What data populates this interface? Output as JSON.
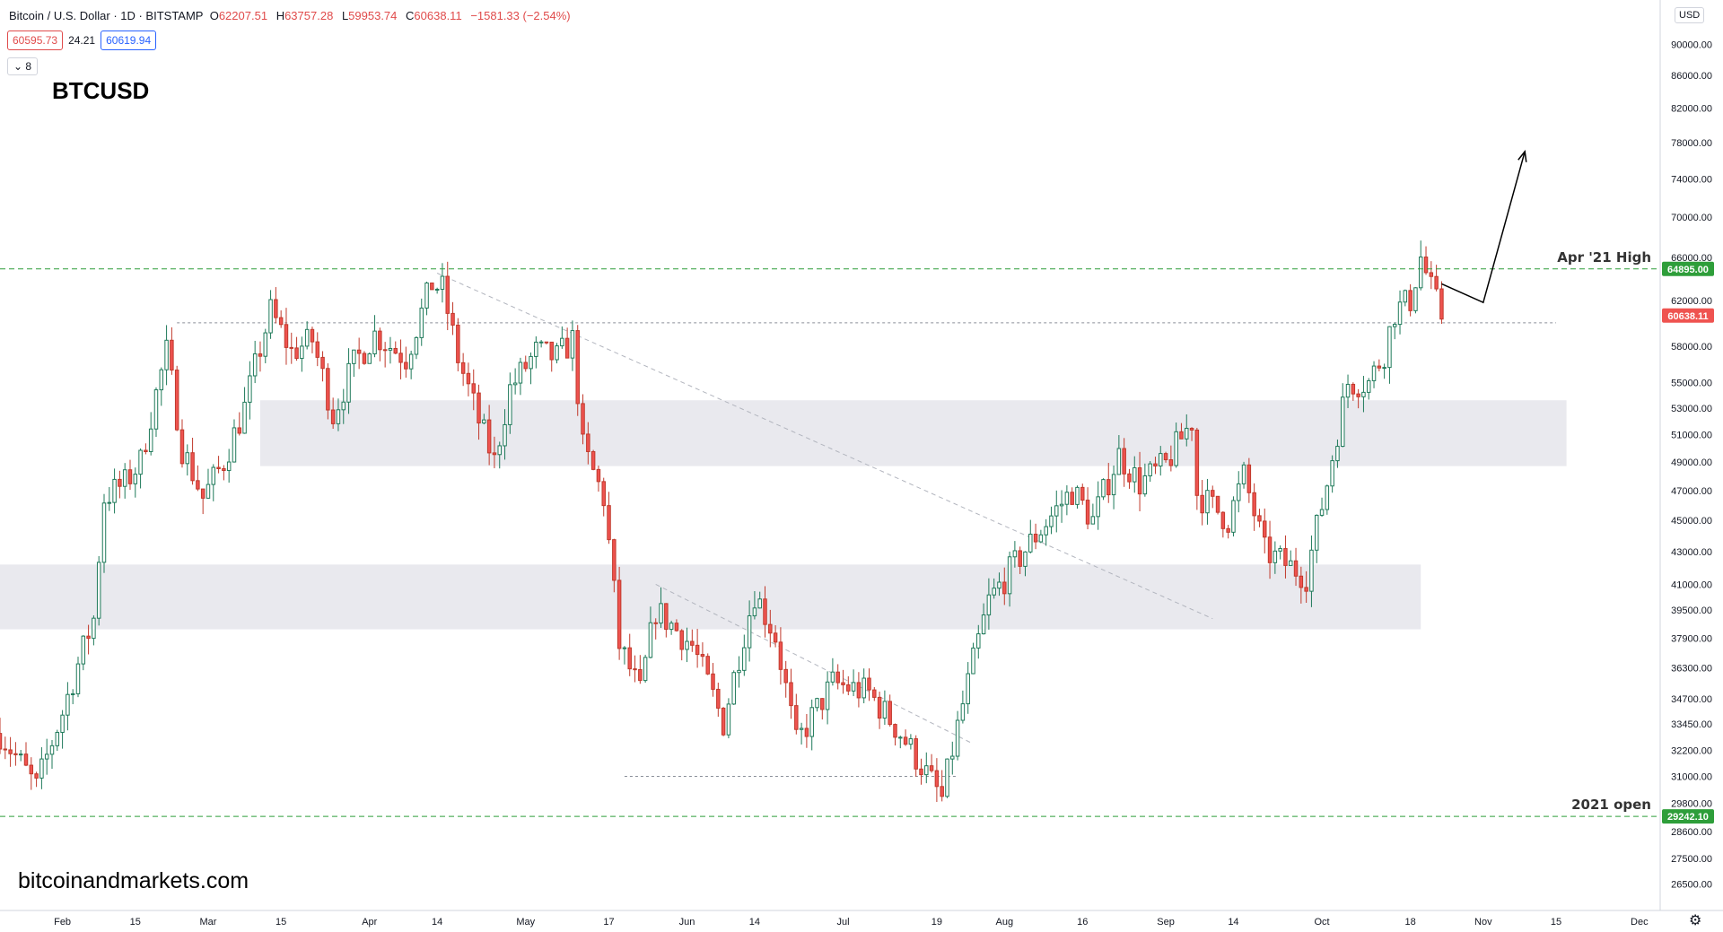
{
  "header": {
    "instrument": "Bitcoin / U.S. Dollar · 1D · BITSTAMP",
    "o_label": "O",
    "o_value": "62207.51",
    "h_label": "H",
    "h_value": "63757.28",
    "l_label": "L",
    "l_value": "59953.74",
    "c_label": "C",
    "c_value": "60638.11",
    "change": "−1581.33 (−2.54%)",
    "bid": "60595.73",
    "spread": "24.21",
    "ask": "60619.94",
    "indicators_count": "8"
  },
  "symbol_title": "BTCUSD",
  "watermark": "bitcoinandmarkets.com",
  "currency": "USD",
  "colors": {
    "up": "#26a69a",
    "down": "#ef5350",
    "body_up": "#ffffff",
    "body_down": "#ef5350",
    "zone": "#e9e9ee",
    "level": "#2e9e3a"
  },
  "chart_data": {
    "type": "candlestick",
    "scale": "log",
    "ylim": [
      25500,
      96000
    ],
    "xlim": [
      "2021-01-20",
      "2021-12-05"
    ],
    "y_ticks": [
      "26500.00",
      "27500.00",
      "28600.00",
      "29800.00",
      "31000.00",
      "32200.00",
      "33450.00",
      "34700.00",
      "36300.00",
      "37900.00",
      "39500.00",
      "41000.00",
      "43000.00",
      "45000.00",
      "47000.00",
      "49000.00",
      "51000.00",
      "53000.00",
      "55000.00",
      "58000.00",
      "62000.00",
      "66000.00",
      "70000.00",
      "74000.00",
      "78000.00",
      "82000.00",
      "86000.00",
      "90000.00"
    ],
    "x_ticks": [
      {
        "label": "Feb",
        "date": "2021-02-01"
      },
      {
        "label": "15",
        "date": "2021-02-15"
      },
      {
        "label": "Mar",
        "date": "2021-03-01"
      },
      {
        "label": "15",
        "date": "2021-03-15"
      },
      {
        "label": "Apr",
        "date": "2021-04-01"
      },
      {
        "label": "14",
        "date": "2021-04-14"
      },
      {
        "label": "May",
        "date": "2021-05-01"
      },
      {
        "label": "17",
        "date": "2021-05-17"
      },
      {
        "label": "Jun",
        "date": "2021-06-01"
      },
      {
        "label": "14",
        "date": "2021-06-14"
      },
      {
        "label": "Jul",
        "date": "2021-07-01"
      },
      {
        "label": "19",
        "date": "2021-07-19"
      },
      {
        "label": "Aug",
        "date": "2021-08-01"
      },
      {
        "label": "16",
        "date": "2021-08-16"
      },
      {
        "label": "Sep",
        "date": "2021-09-01"
      },
      {
        "label": "14",
        "date": "2021-09-14"
      },
      {
        "label": "Oct",
        "date": "2021-10-01"
      },
      {
        "label": "18",
        "date": "2021-10-18"
      },
      {
        "label": "Nov",
        "date": "2021-11-01"
      },
      {
        "label": "15",
        "date": "2021-11-15"
      },
      {
        "label": "Dec",
        "date": "2021-12-01"
      }
    ],
    "anchors": [
      [
        "2021-01-20",
        33000
      ],
      [
        "2021-01-27",
        30500
      ],
      [
        "2021-02-01",
        34000
      ],
      [
        "2021-02-07",
        39000
      ],
      [
        "2021-02-09",
        46500
      ],
      [
        "2021-02-13",
        47500
      ],
      [
        "2021-02-16",
        49000
      ],
      [
        "2021-02-21",
        57500
      ],
      [
        "2021-02-24",
        50000
      ],
      [
        "2021-02-28",
        46500
      ],
      [
        "2021-03-04",
        49000
      ],
      [
        "2021-03-08",
        53000
      ],
      [
        "2021-03-13",
        61000
      ],
      [
        "2021-03-17",
        57500
      ],
      [
        "2021-03-21",
        58500
      ],
      [
        "2021-03-25",
        52500
      ],
      [
        "2021-03-29",
        56500
      ],
      [
        "2021-04-02",
        59000
      ],
      [
        "2021-04-08",
        57000
      ],
      [
        "2021-04-13",
        63500
      ],
      [
        "2021-04-15",
        63000
      ],
      [
        "2021-04-18",
        57000
      ],
      [
        "2021-04-22",
        52000
      ],
      [
        "2021-04-25",
        49000
      ],
      [
        "2021-04-28",
        54500
      ],
      [
        "2021-05-03",
        57500
      ],
      [
        "2021-05-07",
        57000
      ],
      [
        "2021-05-10",
        58500
      ],
      [
        "2021-05-12",
        50000
      ],
      [
        "2021-05-16",
        46500
      ],
      [
        "2021-05-19",
        37500
      ],
      [
        "2021-05-23",
        35000
      ],
      [
        "2021-05-26",
        39500
      ],
      [
        "2021-06-02",
        37500
      ],
      [
        "2021-06-08",
        33500
      ],
      [
        "2021-06-14",
        40500
      ],
      [
        "2021-06-18",
        38000
      ],
      [
        "2021-06-22",
        32500
      ],
      [
        "2021-06-29",
        35500
      ],
      [
        "2021-07-06",
        35000
      ],
      [
        "2021-07-12",
        33000
      ],
      [
        "2021-07-20",
        30000
      ],
      [
        "2021-07-25",
        35500
      ],
      [
        "2021-07-29",
        40000
      ],
      [
        "2021-08-07",
        44000
      ],
      [
        "2021-08-14",
        47000
      ],
      [
        "2021-08-18",
        45000
      ],
      [
        "2021-08-23",
        49500
      ],
      [
        "2021-08-27",
        47500
      ],
      [
        "2021-09-01",
        48800
      ],
      [
        "2021-09-06",
        52000
      ],
      [
        "2021-09-07",
        46800
      ],
      [
        "2021-09-13",
        45000
      ],
      [
        "2021-09-16",
        48000
      ],
      [
        "2021-09-20",
        43000
      ],
      [
        "2021-09-28",
        41500
      ],
      [
        "2021-10-02",
        47500
      ],
      [
        "2021-10-06",
        55000
      ],
      [
        "2021-10-10",
        55000
      ],
      [
        "2021-10-13",
        57500
      ],
      [
        "2021-10-15",
        61000
      ],
      [
        "2021-10-18",
        62000
      ],
      [
        "2021-10-20",
        66000
      ],
      [
        "2021-10-22",
        63000
      ],
      [
        "2021-10-24",
        60638
      ]
    ],
    "zones": [
      {
        "from": "2021-03-11",
        "to": "2021-11-17",
        "low": 48700,
        "high": 53600
      },
      {
        "from": "2021-01-20",
        "to": "2021-10-20",
        "low": 38400,
        "high": 42200
      }
    ],
    "levels": [
      {
        "label": "Apr '21 High",
        "price_label": "64895.00",
        "value": 64895,
        "style": "green-dashed"
      },
      {
        "label": "2021 open",
        "price_label": "29242.10",
        "value": 29242,
        "style": "green-dashed"
      }
    ],
    "last_price": {
      "label": "60638.11",
      "value": 60638.11
    },
    "hlines": [
      {
        "value": 60000,
        "from": "2021-02-23",
        "to": "2021-11-15"
      },
      {
        "value": 31000,
        "from": "2021-05-20",
        "to": "2021-07-23"
      }
    ],
    "trendlines": [
      {
        "from": [
          "2021-04-14",
          64500
        ],
        "to": [
          "2021-09-10",
          39000
        ]
      },
      {
        "from": [
          "2021-05-26",
          41000
        ],
        "to": [
          "2021-07-26",
          32500
        ]
      }
    ],
    "projection": [
      [
        "2021-10-24",
        63500
      ],
      [
        "2021-11-01",
        61800
      ],
      [
        "2021-11-09",
        77000
      ]
    ]
  }
}
